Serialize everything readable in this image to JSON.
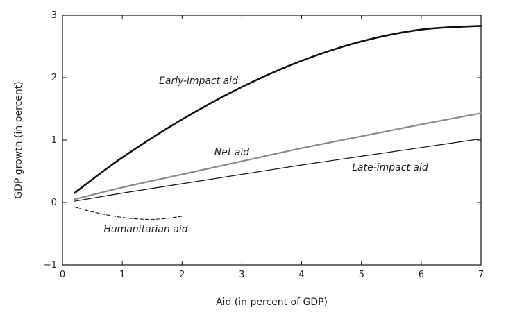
{
  "chart_data": {
    "type": "line",
    "xlabel": "Aid (in percent of GDP)",
    "ylabel": "GDP growth (in percent)",
    "xlim": [
      0,
      7
    ],
    "ylim": [
      -1,
      3
    ],
    "x_ticks": [
      0,
      1,
      2,
      3,
      4,
      5,
      6,
      7
    ],
    "y_ticks": [
      -1,
      0,
      1,
      2,
      3
    ],
    "grid": false,
    "legend": "none (labels placed on chart)",
    "series": [
      {
        "name": "Early-impact aid",
        "style": "solid-thick",
        "color": "#111111",
        "x": [
          0.2,
          1,
          2,
          3,
          4,
          5,
          6,
          7
        ],
        "y": [
          0.15,
          0.72,
          1.33,
          1.85,
          2.27,
          2.58,
          2.77,
          2.83
        ]
      },
      {
        "name": "Net aid",
        "style": "solid-gray",
        "color": "#8a8a8a",
        "x": [
          0.2,
          1,
          2,
          3,
          4,
          5,
          6,
          7
        ],
        "y": [
          0.05,
          0.24,
          0.45,
          0.66,
          0.87,
          1.06,
          1.25,
          1.43
        ]
      },
      {
        "name": "Late-impact aid",
        "style": "solid-thin",
        "color": "#111111",
        "x": [
          0.2,
          1,
          2,
          3,
          4,
          5,
          6,
          7
        ],
        "y": [
          0.02,
          0.15,
          0.3,
          0.45,
          0.6,
          0.74,
          0.88,
          1.02
        ]
      },
      {
        "name": "Humanitarian aid",
        "style": "dashed",
        "color": "#111111",
        "x": [
          0.2,
          0.5,
          1,
          1.4,
          1.7,
          2
        ],
        "y": [
          -0.07,
          -0.15,
          -0.24,
          -0.27,
          -0.26,
          -0.22
        ]
      }
    ]
  }
}
